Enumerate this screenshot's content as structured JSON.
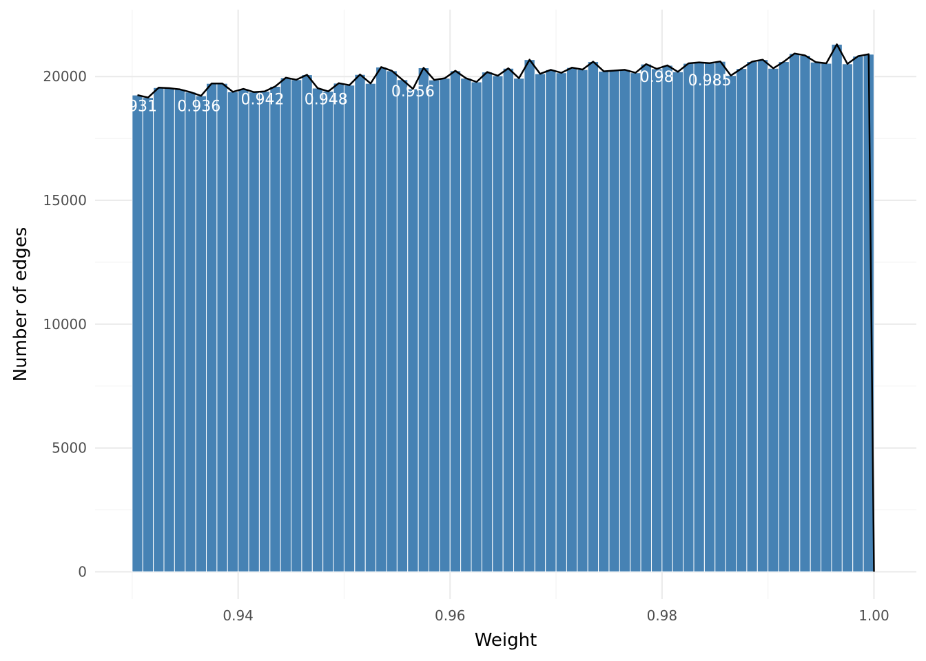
{
  "chart_data": {
    "type": "bar",
    "title": "",
    "xlabel": "Weight",
    "ylabel": "Number of edges",
    "xlim": [
      0.9265,
      1.004
    ],
    "ylim": [
      -1100,
      22700
    ],
    "x_ticks": [
      0.94,
      0.96,
      0.98,
      1.0
    ],
    "x_tick_labels": [
      "0.94",
      "0.96",
      "0.98",
      "1.00"
    ],
    "y_ticks": [
      0,
      5000,
      10000,
      15000,
      20000
    ],
    "y_tick_labels": [
      "0",
      "5000",
      "10000",
      "15000",
      "20000"
    ],
    "x_minor_ticks": [
      0.93,
      0.95,
      0.97,
      0.99
    ],
    "y_minor_ticks": [
      2500,
      7500,
      12500,
      17500
    ],
    "grid": true,
    "bar_color": "#4682B4",
    "bar_outline_color": "#ffffff",
    "line_color": "#000000",
    "label_color": "#ffffff",
    "bin_width": 0.001,
    "x": [
      0.9305,
      0.9315,
      0.9325,
      0.9335,
      0.9345,
      0.9355,
      0.9365,
      0.9375,
      0.9385,
      0.9395,
      0.9405,
      0.9415,
      0.9425,
      0.9435,
      0.9445,
      0.9455,
      0.9465,
      0.9475,
      0.9485,
      0.9495,
      0.9505,
      0.9515,
      0.9525,
      0.9535,
      0.9545,
      0.9555,
      0.9565,
      0.9575,
      0.9585,
      0.9595,
      0.9605,
      0.9615,
      0.9625,
      0.9635,
      0.9645,
      0.9655,
      0.9665,
      0.9675,
      0.9685,
      0.9695,
      0.9705,
      0.9715,
      0.9725,
      0.9735,
      0.9745,
      0.9755,
      0.9765,
      0.9775,
      0.9785,
      0.9795,
      0.9805,
      0.9815,
      0.9825,
      0.9835,
      0.9845,
      0.9855,
      0.9865,
      0.9875,
      0.9885,
      0.9895,
      0.9905,
      0.9915,
      0.9925,
      0.9935,
      0.9945,
      0.9955,
      0.9965,
      0.9975,
      0.9985,
      0.9995
    ],
    "values": [
      19250,
      19150,
      19550,
      19530,
      19480,
      19370,
      19220,
      19720,
      19720,
      19380,
      19500,
      19370,
      19400,
      19600,
      19950,
      19870,
      20070,
      19530,
      19400,
      19730,
      19650,
      20080,
      19720,
      20380,
      20230,
      19870,
      19500,
      20350,
      19860,
      19930,
      20230,
      19930,
      19780,
      20180,
      20030,
      20330,
      19930,
      20680,
      20110,
      20270,
      20150,
      20360,
      20280,
      20600,
      20210,
      20240,
      20270,
      20150,
      20500,
      20310,
      20450,
      20190,
      20530,
      20570,
      20540,
      20610,
      20040,
      20320,
      20600,
      20680,
      20330,
      20600,
      20930,
      20850,
      20580,
      20530,
      21300,
      20510,
      20820,
      20900
    ],
    "line_points": [
      [
        0.9305,
        19250
      ],
      [
        0.9315,
        19150
      ],
      [
        0.9325,
        19550
      ],
      [
        0.9335,
        19530
      ],
      [
        0.9345,
        19480
      ],
      [
        0.9355,
        19370
      ],
      [
        0.9365,
        19220
      ],
      [
        0.9375,
        19720
      ],
      [
        0.9385,
        19720
      ],
      [
        0.9395,
        19380
      ],
      [
        0.9405,
        19500
      ],
      [
        0.9415,
        19370
      ],
      [
        0.9425,
        19400
      ],
      [
        0.9435,
        19600
      ],
      [
        0.9445,
        19950
      ],
      [
        0.9455,
        19870
      ],
      [
        0.9465,
        20070
      ],
      [
        0.9475,
        19530
      ],
      [
        0.9485,
        19400
      ],
      [
        0.9495,
        19730
      ],
      [
        0.9505,
        19650
      ],
      [
        0.9515,
        20080
      ],
      [
        0.9525,
        19720
      ],
      [
        0.9535,
        20380
      ],
      [
        0.9545,
        20230
      ],
      [
        0.9555,
        19870
      ],
      [
        0.9565,
        19500
      ],
      [
        0.9575,
        20350
      ],
      [
        0.9585,
        19860
      ],
      [
        0.9595,
        19930
      ],
      [
        0.9605,
        20230
      ],
      [
        0.9615,
        19930
      ],
      [
        0.9625,
        19780
      ],
      [
        0.9635,
        20180
      ],
      [
        0.9645,
        20030
      ],
      [
        0.9655,
        20330
      ],
      [
        0.9665,
        19930
      ],
      [
        0.9675,
        20680
      ],
      [
        0.9685,
        20110
      ],
      [
        0.9695,
        20270
      ],
      [
        0.9705,
        20150
      ],
      [
        0.9715,
        20360
      ],
      [
        0.9725,
        20280
      ],
      [
        0.9735,
        20600
      ],
      [
        0.9745,
        20210
      ],
      [
        0.9755,
        20240
      ],
      [
        0.9765,
        20270
      ],
      [
        0.9775,
        20150
      ],
      [
        0.9785,
        20500
      ],
      [
        0.9795,
        20310
      ],
      [
        0.9805,
        20450
      ],
      [
        0.9815,
        20190
      ],
      [
        0.9825,
        20530
      ],
      [
        0.9835,
        20570
      ],
      [
        0.9845,
        20540
      ],
      [
        0.9855,
        20610
      ],
      [
        0.9865,
        20040
      ],
      [
        0.9875,
        20320
      ],
      [
        0.9885,
        20600
      ],
      [
        0.9895,
        20680
      ],
      [
        0.9905,
        20330
      ],
      [
        0.9915,
        20600
      ],
      [
        0.9925,
        20930
      ],
      [
        0.9935,
        20850
      ],
      [
        0.9945,
        20580
      ],
      [
        0.9955,
        20530
      ],
      [
        0.9965,
        21300
      ],
      [
        0.9975,
        20510
      ],
      [
        0.9985,
        20820
      ],
      [
        0.9995,
        20900
      ],
      [
        1.0,
        0
      ]
    ],
    "bar_labels": [
      {
        "text": "0.931",
        "x": 0.9303,
        "y": 18600
      },
      {
        "text": "0.936",
        "x": 0.9363,
        "y": 18600
      },
      {
        "text": "0.942",
        "x": 0.9423,
        "y": 18880
      },
      {
        "text": "0.948",
        "x": 0.9483,
        "y": 18880
      },
      {
        "text": "0.956",
        "x": 0.9565,
        "y": 19200
      },
      {
        "text": "0.98",
        "x": 0.9795,
        "y": 19780
      },
      {
        "text": "0.985",
        "x": 0.9845,
        "y": 19640
      }
    ]
  }
}
